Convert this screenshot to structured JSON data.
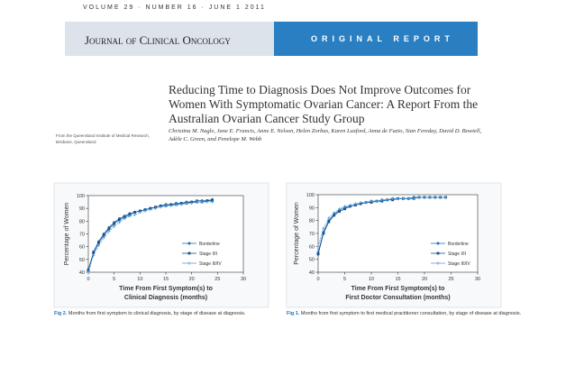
{
  "header": {
    "issue": "VOLUME 29 · NUMBER 16 · JUNE 1 2011",
    "journal": "Journal of Clinical Oncology",
    "section": "ORIGINAL REPORT"
  },
  "article": {
    "title": "Reducing Time to Diagnosis Does Not Improve Outcomes for Women With Symptomatic Ovarian Cancer: A Report From the Australian Ovarian Cancer Study Group",
    "authors": "Christina M. Nagle, Jane E. Francis, Anne E. Nelson, Helen Zorbas, Karen Luxford, Anna de Fazio, Sian Fereday, David D. Bowtell, Adèle C. Green, and Penelope M. Webb",
    "affiliation": "From the Queensland Institute of Medical Research, Brisbane, Queensland"
  },
  "chart_data": [
    {
      "type": "line",
      "ylabel": "Percentage of Women",
      "xlabel": [
        "Time From First Symptom(s) to",
        "Clinical Diagnosis (months)"
      ],
      "caption": {
        "label": "Fig 2.",
        "text": "Months from first symptom to clinical diagnosis, by stage of disease at diagnosis."
      },
      "x": [
        0,
        1,
        2,
        3,
        4,
        5,
        6,
        7,
        8,
        9,
        10,
        11,
        12,
        13,
        14,
        15,
        16,
        17,
        18,
        19,
        20,
        21,
        22,
        23,
        24
      ],
      "xlim": [
        0,
        30
      ],
      "xticks": [
        0,
        5,
        10,
        15,
        20,
        25,
        30
      ],
      "ylim": [
        40,
        100
      ],
      "yticks": [
        40,
        50,
        60,
        70,
        80,
        90,
        100
      ],
      "series": [
        {
          "name": "Borderline",
          "color": "#1f6fb5",
          "marker": "circle",
          "values": [
            41,
            56,
            64,
            70,
            75,
            79,
            82,
            84,
            86,
            87,
            88,
            89,
            90,
            91,
            92,
            93,
            93,
            94,
            94,
            95,
            95,
            96,
            96,
            96,
            97
          ]
        },
        {
          "name": "Stage I/II",
          "color": "#16508c",
          "marker": "square",
          "values": [
            42,
            55,
            63,
            69,
            74,
            78,
            81,
            83,
            85,
            87,
            88,
            89,
            90,
            91,
            92,
            92,
            93,
            93,
            94,
            94,
            95,
            95,
            95,
            96,
            96
          ]
        },
        {
          "name": "Stage III/IV",
          "color": "#5aa0d8",
          "marker": "cross",
          "values": [
            40,
            53,
            61,
            67,
            72,
            76,
            79,
            82,
            84,
            85,
            87,
            88,
            89,
            90,
            91,
            92,
            92,
            93,
            93,
            94,
            94,
            95,
            95,
            95,
            95
          ]
        }
      ]
    },
    {
      "type": "line",
      "ylabel": "Percentage of Women",
      "xlabel": [
        "Time From First Symptom(s) to",
        "First Doctor Consultation (months)"
      ],
      "caption": {
        "label": "Fig 1.",
        "text": "Months from first symptom to first medical practitioner consultation, by stage of disease at diagnosis."
      },
      "x": [
        0,
        1,
        2,
        3,
        4,
        5,
        6,
        7,
        8,
        9,
        10,
        11,
        12,
        13,
        14,
        15,
        16,
        17,
        18,
        19,
        20,
        21,
        22,
        23,
        24
      ],
      "xlim": [
        0,
        30
      ],
      "xticks": [
        0,
        5,
        10,
        15,
        20,
        25,
        30
      ],
      "ylim": [
        40,
        100
      ],
      "yticks": [
        40,
        50,
        60,
        70,
        80,
        90,
        100
      ],
      "series": [
        {
          "name": "Borderline",
          "color": "#1f6fb5",
          "marker": "circle",
          "values": [
            55,
            71,
            80,
            85,
            88,
            90,
            91,
            92,
            93,
            94,
            95,
            95,
            96,
            96,
            97,
            97,
            97,
            97,
            98,
            98,
            98,
            98,
            98,
            98,
            98
          ]
        },
        {
          "name": "Stage I/II",
          "color": "#16508c",
          "marker": "square",
          "values": [
            54,
            70,
            79,
            84,
            87,
            89,
            91,
            92,
            93,
            94,
            94,
            95,
            95,
            96,
            96,
            97,
            97,
            97,
            97,
            98,
            98,
            98,
            98,
            98,
            98
          ]
        },
        {
          "name": "Stage III/IV",
          "color": "#5aa0d8",
          "marker": "cross",
          "values": [
            60,
            74,
            82,
            86,
            89,
            91,
            92,
            93,
            94,
            94,
            95,
            95,
            96,
            96,
            97,
            97,
            97,
            97,
            97,
            98,
            98,
            98,
            98,
            98,
            98
          ]
        }
      ]
    }
  ]
}
